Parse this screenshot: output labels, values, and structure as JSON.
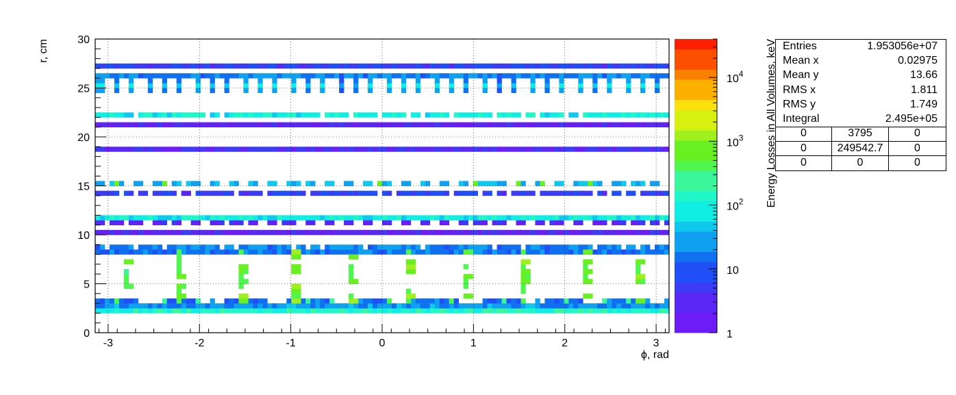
{
  "chart_data": {
    "type": "heatmap",
    "title": "",
    "xlabel": "ϕ, rad",
    "ylabel": "r, cm",
    "zlabel": "Energy Losses in All Volumes, keV",
    "xlim": [
      -3.1416,
      3.1416
    ],
    "ylim": [
      0,
      30
    ],
    "zlim": [
      1,
      40000
    ],
    "z_log": true,
    "x_ticks": [
      "-3",
      "-2",
      "-1",
      "0",
      "1",
      "2",
      "3"
    ],
    "y_ticks": [
      "0",
      "5",
      "10",
      "15",
      "20",
      "25",
      "30"
    ],
    "z_ticks": [
      "1",
      "10",
      "10^2",
      "10^3",
      "10^4"
    ],
    "grid": true,
    "bands": [
      {
        "r": 2.0,
        "level": 2.0,
        "pattern": "solid"
      },
      {
        "r": 2.8,
        "level": 1.2,
        "pattern": "solid"
      },
      {
        "r": 3.2,
        "level": 1.0,
        "pattern": "clusters",
        "period": 9,
        "width": 0.4
      },
      {
        "r": 8.2,
        "level": 1.0,
        "pattern": "solid"
      },
      {
        "r": 8.6,
        "level": 1.1,
        "pattern": "alternate"
      },
      {
        "r": 10.1,
        "level": 0.2,
        "pattern": "solid"
      },
      {
        "r": 11.0,
        "level": 0.2,
        "pattern": "dashed"
      },
      {
        "r": 11.9,
        "level": 1.8,
        "pattern": "solid"
      },
      {
        "r": 14.2,
        "level": 0.6,
        "pattern": "alternate"
      },
      {
        "r": 15.2,
        "level": 1.4,
        "pattern": "clusters",
        "period": 30,
        "width": 0.2
      },
      {
        "r": 18.5,
        "level": 0.3,
        "pattern": "solid"
      },
      {
        "r": 21.2,
        "level": 0.2,
        "pattern": "solid"
      },
      {
        "r": 22.2,
        "level": 1.8,
        "pattern": "alternate"
      },
      {
        "r": 25.5,
        "level": 1.1,
        "pattern": "comb",
        "period": 36
      },
      {
        "r": 27.2,
        "level": 0.6,
        "pattern": "solid"
      }
    ],
    "columns": [
      {
        "phi": -2.8,
        "r_range": [
          3,
          8
        ],
        "level": 2.6
      },
      {
        "phi": -2.2,
        "r_range": [
          3,
          8
        ],
        "level": 2.6
      },
      {
        "phi": -1.57,
        "r_range": [
          3,
          8
        ],
        "level": 2.6
      },
      {
        "phi": -0.95,
        "r_range": [
          3,
          8
        ],
        "level": 2.6
      },
      {
        "phi": -0.33,
        "r_range": [
          3,
          8
        ],
        "level": 2.7
      },
      {
        "phi": 0.31,
        "r_range": [
          3,
          8
        ],
        "level": 2.7
      },
      {
        "phi": 0.94,
        "r_range": [
          3,
          8
        ],
        "level": 2.6
      },
      {
        "phi": 1.57,
        "r_range": [
          3,
          8
        ],
        "level": 2.6
      },
      {
        "phi": 2.2,
        "r_range": [
          3,
          8
        ],
        "level": 2.6
      },
      {
        "phi": 2.8,
        "r_range": [
          3,
          8
        ],
        "level": 2.6
      }
    ],
    "palette": [
      "#6c1cf6",
      "#5a28f5",
      "#3c3cf5",
      "#2050f5",
      "#1070f0",
      "#10a0f0",
      "#10c8ee",
      "#10eee4",
      "#20f6c8",
      "#3cf69c",
      "#50f650",
      "#68f020",
      "#a0f020",
      "#d8f010",
      "#fce010",
      "#fcb000",
      "#fc8000",
      "#fc5000",
      "#fc2000"
    ]
  },
  "stats": {
    "entries_label": "Entries",
    "entries_value": "1.953056e+07",
    "mean_x_label": "Mean x",
    "mean_x_value": "0.02975",
    "mean_y_label": "Mean y",
    "mean_y_value": "13.66",
    "rms_x_label": "RMS x",
    "rms_x_value": "1.811",
    "rms_y_label": "RMS y",
    "rms_y_value": "1.749",
    "integral_label": "Integral",
    "integral_value": "2.495e+05",
    "table": [
      [
        "0",
        "3795",
        "0"
      ],
      [
        "0",
        "249542.7",
        "0"
      ],
      [
        "0",
        "0",
        "0"
      ]
    ]
  }
}
